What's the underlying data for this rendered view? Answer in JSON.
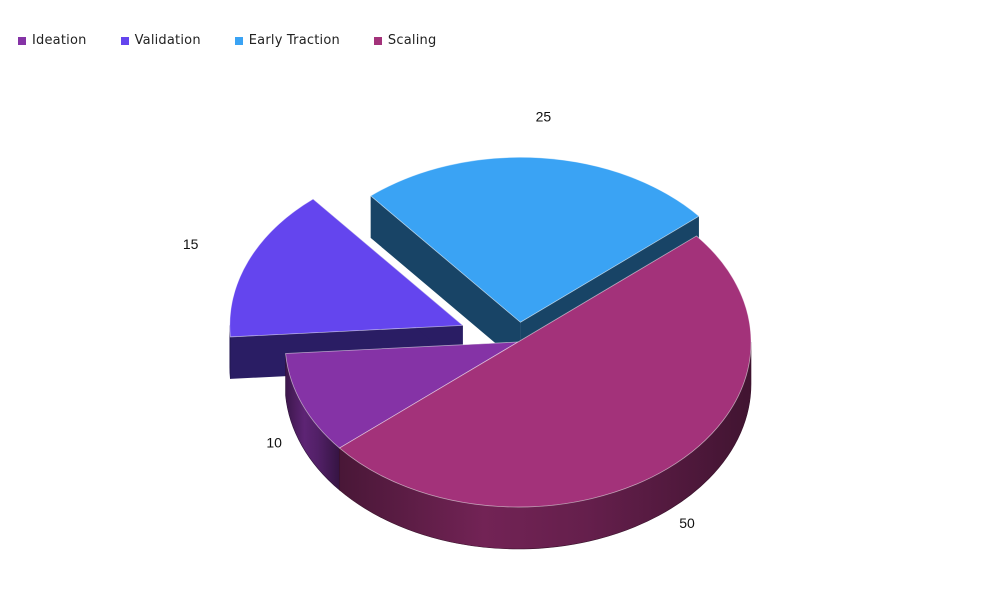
{
  "chart_data": {
    "type": "pie",
    "style": "3d-exploded",
    "title": "",
    "legend_position": "top-left",
    "categories": [
      "Ideation",
      "Validation",
      "Early Traction",
      "Scaling"
    ],
    "values": [
      10,
      15,
      25,
      50
    ],
    "colors": [
      "#8533A6",
      "#6445EE",
      "#3AA3F4",
      "#A3327A"
    ],
    "exploded": [
      "Validation",
      "Early Traction"
    ],
    "data_labels": [
      "10",
      "15",
      "25",
      "50"
    ]
  }
}
